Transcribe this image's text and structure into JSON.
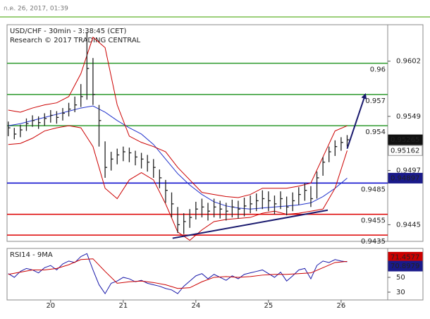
{
  "timestamp": "ก.ค. 26, 2017, 01:39",
  "chart_data": [
    {
      "type": "ohlc",
      "title": "USD/CHF - 30min - 3:38:45 (CET)",
      "subtitle": "Research © 2017 TRADING CENTRAL",
      "color": "#222222",
      "x": [
        -14,
        -12,
        -10,
        -8,
        -6,
        -4,
        -2,
        0,
        2,
        4,
        6,
        8,
        10,
        12,
        14,
        16,
        18,
        20,
        22,
        24,
        26,
        28,
        30,
        32,
        34,
        36,
        38,
        40,
        42,
        44,
        46,
        48,
        50,
        52,
        54,
        56,
        58,
        60,
        62,
        64,
        66,
        68,
        70,
        72,
        74,
        76,
        78,
        80,
        82,
        84,
        86,
        88,
        90,
        92,
        94,
        96,
        98
      ],
      "high": [
        0.9544,
        0.9538,
        0.9541,
        0.9547,
        0.955,
        0.9549,
        0.9552,
        0.9555,
        0.9554,
        0.9557,
        0.9562,
        0.9568,
        0.958,
        0.963,
        0.9605,
        0.956,
        0.9525,
        0.9515,
        0.9518,
        0.952,
        0.9519,
        0.9516,
        0.9514,
        0.9512,
        0.9508,
        0.9498,
        0.9488,
        0.9476,
        0.9462,
        0.9456,
        0.946,
        0.9467,
        0.947,
        0.9466,
        0.947,
        0.9468,
        0.9466,
        0.9469,
        0.9468,
        0.9471,
        0.9473,
        0.9475,
        0.9478,
        0.9477,
        0.9473,
        0.9477,
        0.9472,
        0.9476,
        0.9481,
        0.9485,
        0.9482,
        0.9496,
        0.951,
        0.952,
        0.9526,
        0.9529,
        0.9531
      ],
      "low": [
        0.953,
        0.9527,
        0.9529,
        0.9535,
        0.9539,
        0.9537,
        0.954,
        0.9543,
        0.9542,
        0.9545,
        0.9549,
        0.9553,
        0.9558,
        0.9565,
        0.956,
        0.952,
        0.949,
        0.9497,
        0.9503,
        0.9506,
        0.9505,
        0.9502,
        0.9499,
        0.9496,
        0.949,
        0.948,
        0.9466,
        0.9452,
        0.9437,
        0.9436,
        0.9442,
        0.945,
        0.9452,
        0.9449,
        0.9452,
        0.9451,
        0.9449,
        0.9452,
        0.9451,
        0.9453,
        0.9456,
        0.9458,
        0.946,
        0.9458,
        0.9455,
        0.946,
        0.9454,
        0.9458,
        0.9464,
        0.9468,
        0.9462,
        0.947,
        0.9492,
        0.9505,
        0.9511,
        0.9516,
        0.952
      ],
      "close": [
        0.9538,
        0.9532,
        0.9536,
        0.9542,
        0.9545,
        0.9543,
        0.9547,
        0.955,
        0.9548,
        0.9552,
        0.9556,
        0.956,
        0.9568,
        0.9595,
        0.957,
        0.9545,
        0.95,
        0.9508,
        0.9512,
        0.9515,
        0.9514,
        0.951,
        0.9508,
        0.9505,
        0.95,
        0.949,
        0.9478,
        0.9465,
        0.9445,
        0.9448,
        0.9452,
        0.946,
        0.9462,
        0.9458,
        0.9462,
        0.946,
        0.9458,
        0.9462,
        0.946,
        0.9463,
        0.9465,
        0.9468,
        0.947,
        0.9468,
        0.9465,
        0.947,
        0.9462,
        0.9468,
        0.9474,
        0.9478,
        0.947,
        0.949,
        0.9505,
        0.9515,
        0.952,
        0.9524,
        0.95265
      ],
      "overlays": [
        {
          "color": "#2233cc",
          "x": [
            -14,
            -10,
            -6,
            -2,
            2,
            6,
            10,
            14,
            18,
            22,
            26,
            30,
            34,
            38,
            42,
            46,
            50,
            54,
            58,
            62,
            66,
            70,
            74,
            78,
            82,
            86,
            90,
            94,
            98
          ],
          "values": [
            0.954,
            0.9542,
            0.9545,
            0.9548,
            0.9551,
            0.9554,
            0.9557,
            0.9559,
            0.9553,
            0.9545,
            0.9538,
            0.9532,
            0.9522,
            0.9508,
            0.9494,
            0.9483,
            0.9474,
            0.9467,
            0.9463,
            0.9461,
            0.946,
            0.9461,
            0.9462,
            0.9463,
            0.9464,
            0.9466,
            0.9472,
            0.948,
            0.94897
          ]
        },
        {
          "color": "#cc0000",
          "x": [
            -14,
            -10,
            -6,
            -2,
            2,
            6,
            10,
            14,
            18,
            22,
            26,
            30,
            34,
            38,
            42,
            46,
            50,
            54,
            58,
            62,
            66,
            70,
            74,
            78,
            82,
            86,
            90,
            94,
            98
          ],
          "values": [
            0.9555,
            0.9553,
            0.9557,
            0.956,
            0.9562,
            0.9568,
            0.959,
            0.9625,
            0.9615,
            0.956,
            0.953,
            0.9524,
            0.952,
            0.9515,
            0.95,
            0.9488,
            0.9476,
            0.9474,
            0.9472,
            0.9471,
            0.9474,
            0.948,
            0.948,
            0.948,
            0.9482,
            0.9485,
            0.951,
            0.9535,
            0.954
          ]
        },
        {
          "color": "#cc0000",
          "x": [
            -14,
            -10,
            -6,
            -2,
            2,
            6,
            10,
            14,
            18,
            22,
            26,
            30,
            34,
            38,
            42,
            46,
            50,
            54,
            58,
            62,
            66,
            70,
            74,
            78,
            82,
            86,
            90,
            94,
            98
          ],
          "values": [
            0.9522,
            0.9523,
            0.9528,
            0.9535,
            0.9538,
            0.954,
            0.9538,
            0.952,
            0.948,
            0.947,
            0.9488,
            0.9495,
            0.9488,
            0.9465,
            0.9438,
            0.943,
            0.944,
            0.9448,
            0.945,
            0.9451,
            0.9452,
            0.9456,
            0.9458,
            0.9455,
            0.9456,
            0.9458,
            0.946,
            0.948,
            0.95162
          ]
        }
      ],
      "levels": [
        {
          "value": 0.96,
          "color": "#2d9a2d"
        },
        {
          "value": 0.957,
          "color": "#2d9a2d"
        },
        {
          "value": 0.954,
          "color": "#2d9a2d"
        },
        {
          "value": 0.9485,
          "color": "#0000cc"
        },
        {
          "value": 0.9455,
          "color": "#dd0000"
        },
        {
          "value": 0.9435,
          "color": "#dd0000"
        }
      ],
      "trendline": {
        "color": "#1a1a6e",
        "x": [
          40.3,
          91.6
        ],
        "y": [
          0.9432,
          0.9459
        ]
      },
      "arrow": {
        "color": "#1a1a6e",
        "x": [
          98,
          104
        ],
        "y": [
          0.9518,
          0.957
        ]
      },
      "xlim": [
        -14.4,
        111.4
      ],
      "ylim": [
        0.9429,
        0.9637
      ],
      "yticks": [
        0.9602,
        0.9549,
        0.9497,
        0.9445
      ]
    },
    {
      "type": "line",
      "title": "RSI14 - 9MA",
      "series": [
        {
          "color": "#1a1aaa",
          "x": [
            -14,
            -12,
            -10,
            -8,
            -6,
            -4,
            -2,
            0,
            2,
            4,
            6,
            8,
            10,
            12,
            14,
            16,
            18,
            20,
            22,
            24,
            26,
            28,
            30,
            32,
            34,
            36,
            38,
            40,
            42,
            44,
            46,
            48,
            50,
            52,
            54,
            56,
            58,
            60,
            62,
            64,
            66,
            68,
            70,
            72,
            74,
            76,
            78,
            80,
            82,
            84,
            86,
            88,
            90,
            92,
            94,
            96,
            98
          ],
          "values": [
            55,
            50,
            58,
            62,
            60,
            56,
            63,
            66,
            60,
            68,
            72,
            70,
            78,
            82,
            60,
            40,
            28,
            42,
            45,
            50,
            48,
            44,
            46,
            42,
            40,
            38,
            35,
            33,
            28,
            38,
            45,
            52,
            55,
            48,
            54,
            50,
            46,
            52,
            48,
            54,
            56,
            58,
            60,
            55,
            50,
            57,
            45,
            52,
            60,
            62,
            48,
            66,
            72,
            70,
            74,
            72,
            70.8979
          ]
        },
        {
          "color": "#cc0000",
          "x": [
            -14,
            -10,
            -6,
            -2,
            2,
            6,
            10,
            14,
            18,
            22,
            26,
            30,
            34,
            38,
            42,
            46,
            50,
            54,
            58,
            62,
            66,
            70,
            74,
            78,
            82,
            86,
            90,
            94,
            98
          ],
          "values": [
            54,
            57,
            60,
            60,
            62,
            67,
            74,
            75,
            58,
            42,
            44,
            45,
            43,
            40,
            35,
            36,
            44,
            50,
            51,
            50,
            51,
            53,
            54,
            54,
            55,
            56,
            63,
            70,
            71.4577
          ]
        }
      ],
      "xlim": [
        -14.4,
        111.4
      ],
      "xticks": [
        {
          "value": 0,
          "label": "20"
        },
        {
          "value": 24,
          "label": "21"
        },
        {
          "value": 48,
          "label": "24"
        },
        {
          "value": 72,
          "label": "25"
        },
        {
          "value": 96,
          "label": "26"
        }
      ],
      "ylim": [
        19.5,
        89
      ],
      "yticks": [
        50,
        30
      ]
    }
  ]
}
